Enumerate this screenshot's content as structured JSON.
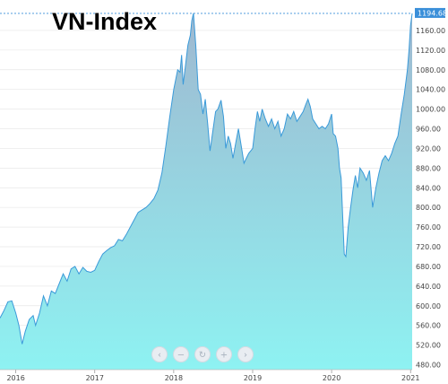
{
  "chart_data": {
    "type": "area",
    "title": "VN-Index",
    "xlabel": "",
    "ylabel": "",
    "ylim": [
      470,
      1200
    ],
    "xlim": [
      2015.8,
      2021.02
    ],
    "y_ticks": [
      "480.00",
      "520.00",
      "560.00",
      "600.00",
      "640.00",
      "680.00",
      "720.00",
      "760.00",
      "800.00",
      "840.00",
      "880.00",
      "920.00",
      "960.00",
      "1000.00",
      "1040.00",
      "1080.00",
      "1120.00",
      "1160.00"
    ],
    "x_ticks": [
      "2016",
      "2017",
      "2018",
      "2019",
      "2020",
      "2021"
    ],
    "last_value_label": "1194.68",
    "colors": {
      "fill_top": "#9fb8d0",
      "fill_bottom": "#8ef2f2",
      "line": "#3a9ad9",
      "last_label_bg": "#3a8fd9",
      "grid": "#e8e8e8"
    },
    "points": [
      [
        2015.8,
        575
      ],
      [
        2015.85,
        590
      ],
      [
        2015.9,
        608
      ],
      [
        2015.95,
        610
      ],
      [
        2016.0,
        585
      ],
      [
        2016.04,
        560
      ],
      [
        2016.08,
        522
      ],
      [
        2016.12,
        548
      ],
      [
        2016.17,
        572
      ],
      [
        2016.22,
        580
      ],
      [
        2016.25,
        560
      ],
      [
        2016.3,
        585
      ],
      [
        2016.35,
        620
      ],
      [
        2016.4,
        600
      ],
      [
        2016.45,
        630
      ],
      [
        2016.5,
        625
      ],
      [
        2016.55,
        645
      ],
      [
        2016.6,
        665
      ],
      [
        2016.65,
        650
      ],
      [
        2016.7,
        675
      ],
      [
        2016.75,
        680
      ],
      [
        2016.8,
        665
      ],
      [
        2016.85,
        678
      ],
      [
        2016.9,
        670
      ],
      [
        2016.95,
        668
      ],
      [
        2017.0,
        672
      ],
      [
        2017.05,
        690
      ],
      [
        2017.1,
        705
      ],
      [
        2017.15,
        712
      ],
      [
        2017.2,
        718
      ],
      [
        2017.25,
        722
      ],
      [
        2017.3,
        735
      ],
      [
        2017.35,
        732
      ],
      [
        2017.4,
        745
      ],
      [
        2017.45,
        760
      ],
      [
        2017.5,
        775
      ],
      [
        2017.55,
        790
      ],
      [
        2017.6,
        795
      ],
      [
        2017.65,
        800
      ],
      [
        2017.7,
        808
      ],
      [
        2017.75,
        818
      ],
      [
        2017.8,
        835
      ],
      [
        2017.85,
        870
      ],
      [
        2017.9,
        925
      ],
      [
        2017.95,
        985
      ],
      [
        2018.0,
        1040
      ],
      [
        2018.05,
        1080
      ],
      [
        2018.08,
        1075
      ],
      [
        2018.1,
        1110
      ],
      [
        2018.12,
        1050
      ],
      [
        2018.15,
        1090
      ],
      [
        2018.18,
        1130
      ],
      [
        2018.21,
        1150
      ],
      [
        2018.23,
        1180
      ],
      [
        2018.25,
        1195
      ],
      [
        2018.28,
        1130
      ],
      [
        2018.31,
        1040
      ],
      [
        2018.34,
        1030
      ],
      [
        2018.37,
        990
      ],
      [
        2018.4,
        1020
      ],
      [
        2018.43,
        970
      ],
      [
        2018.46,
        915
      ],
      [
        2018.5,
        960
      ],
      [
        2018.53,
        995
      ],
      [
        2018.56,
        1000
      ],
      [
        2018.6,
        1018
      ],
      [
        2018.63,
        985
      ],
      [
        2018.66,
        920
      ],
      [
        2018.69,
        945
      ],
      [
        2018.72,
        930
      ],
      [
        2018.75,
        900
      ],
      [
        2018.79,
        935
      ],
      [
        2018.82,
        960
      ],
      [
        2018.86,
        920
      ],
      [
        2018.89,
        890
      ],
      [
        2018.92,
        900
      ],
      [
        2018.95,
        910
      ],
      [
        2019.0,
        920
      ],
      [
        2019.03,
        960
      ],
      [
        2019.06,
        995
      ],
      [
        2019.09,
        975
      ],
      [
        2019.12,
        1000
      ],
      [
        2019.16,
        980
      ],
      [
        2019.2,
        965
      ],
      [
        2019.24,
        980
      ],
      [
        2019.28,
        960
      ],
      [
        2019.32,
        975
      ],
      [
        2019.36,
        945
      ],
      [
        2019.4,
        960
      ],
      [
        2019.44,
        990
      ],
      [
        2019.48,
        980
      ],
      [
        2019.52,
        995
      ],
      [
        2019.56,
        975
      ],
      [
        2019.6,
        985
      ],
      [
        2019.64,
        995
      ],
      [
        2019.67,
        1008
      ],
      [
        2019.7,
        1020
      ],
      [
        2019.73,
        1005
      ],
      [
        2019.76,
        980
      ],
      [
        2019.8,
        970
      ],
      [
        2019.84,
        960
      ],
      [
        2019.88,
        965
      ],
      [
        2019.92,
        960
      ],
      [
        2019.96,
        970
      ],
      [
        2020.0,
        990
      ],
      [
        2020.02,
        950
      ],
      [
        2020.05,
        945
      ],
      [
        2020.08,
        920
      ],
      [
        2020.1,
        880
      ],
      [
        2020.12,
        860
      ],
      [
        2020.14,
        780
      ],
      [
        2020.16,
        705
      ],
      [
        2020.18,
        700
      ],
      [
        2020.21,
        760
      ],
      [
        2020.24,
        800
      ],
      [
        2020.27,
        835
      ],
      [
        2020.3,
        865
      ],
      [
        2020.33,
        840
      ],
      [
        2020.36,
        880
      ],
      [
        2020.4,
        870
      ],
      [
        2020.44,
        855
      ],
      [
        2020.48,
        875
      ],
      [
        2020.52,
        800
      ],
      [
        2020.56,
        840
      ],
      [
        2020.6,
        870
      ],
      [
        2020.64,
        895
      ],
      [
        2020.68,
        905
      ],
      [
        2020.72,
        895
      ],
      [
        2020.76,
        910
      ],
      [
        2020.8,
        930
      ],
      [
        2020.84,
        945
      ],
      [
        2020.88,
        990
      ],
      [
        2020.92,
        1030
      ],
      [
        2020.96,
        1080
      ],
      [
        2020.98,
        1120
      ],
      [
        2021.0,
        1170
      ],
      [
        2021.02,
        1194.68
      ]
    ]
  },
  "nav": {
    "buttons": [
      {
        "name": "scroll-left-button",
        "glyph": "‹"
      },
      {
        "name": "zoom-out-button",
        "glyph": "−"
      },
      {
        "name": "reset-zoom-button",
        "glyph": "↻"
      },
      {
        "name": "zoom-in-button",
        "glyph": "+"
      },
      {
        "name": "scroll-right-button",
        "glyph": "›"
      }
    ]
  }
}
